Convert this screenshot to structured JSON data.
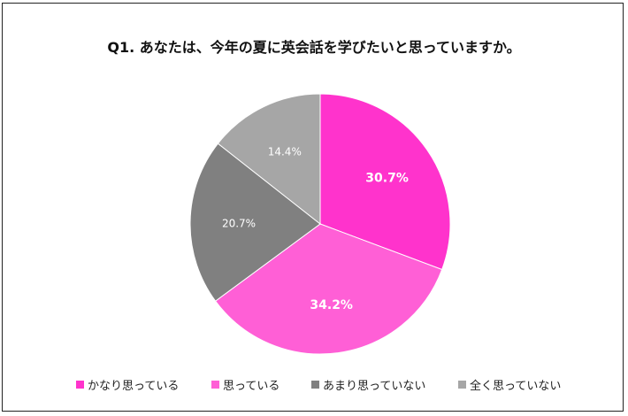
{
  "chart_data": {
    "type": "pie",
    "title": "Q1.  あなたは、今年の夏に英会話を学びたいと思っていますか。",
    "slices": [
      {
        "label": "かなり思っている",
        "value": 30.7,
        "display": "30.7%",
        "color": "#ff33cc",
        "label_color": "#ffffff",
        "label_bold": true
      },
      {
        "label": "思っている",
        "value": 34.2,
        "display": "34.2%",
        "color": "#ff5fd6",
        "label_color": "#ffffff",
        "label_bold": true
      },
      {
        "label": "あまり思っていない",
        "value": 20.7,
        "display": "20.7%",
        "color": "#808080",
        "label_color": "#ffffff",
        "label_bold": false
      },
      {
        "label": "全く思っていない",
        "value": 14.4,
        "display": "14.4%",
        "color": "#a6a6a6",
        "label_color": "#ffffff",
        "label_bold": false
      }
    ],
    "start_angle_deg": 0,
    "direction": "clockwise",
    "legend_position": "bottom"
  }
}
